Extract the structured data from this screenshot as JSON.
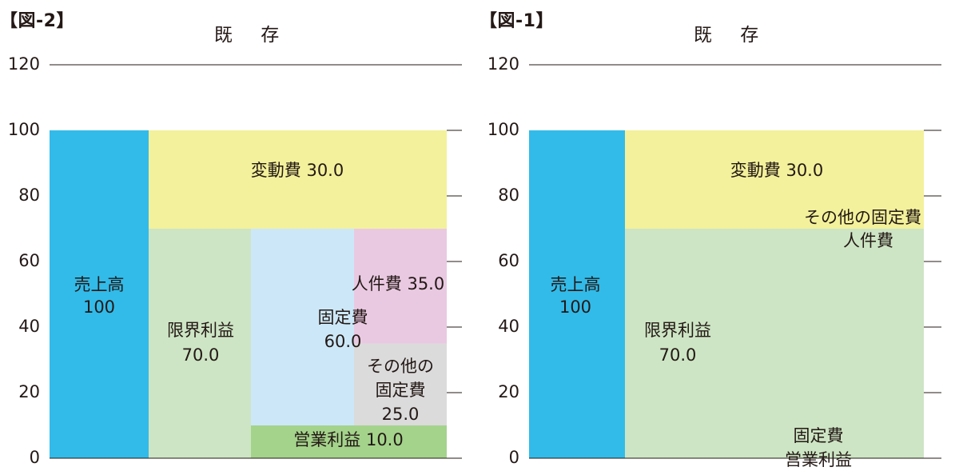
{
  "chart_data": [
    {
      "type": "bar",
      "figure_label": "【図-2】",
      "title": "既 存",
      "y_ticks": [
        "120",
        "100",
        "80",
        "60",
        "40",
        "20",
        "0"
      ],
      "ylim": [
        0,
        120
      ],
      "grid": false,
      "colors": {
        "sales": "#32bbe9",
        "variable": "#f3f19b",
        "marginal": "#cde5c4",
        "fixed": "#cce8f8",
        "personnel": "#e9c9e1",
        "other_fixed": "#dbdbdb",
        "operating_profit": "#a4d38c"
      },
      "segments": {
        "sales": {
          "label": "売上高",
          "value_text": "100",
          "bottom": 0,
          "top": 100
        },
        "variable": {
          "label": "変動費 30.0",
          "bottom": 70,
          "top": 100
        },
        "marginal": {
          "label": "限界利益",
          "value_text": "70.0",
          "bottom": 0,
          "top": 70
        },
        "fixed": {
          "label": "固定費",
          "value_text": "60.0",
          "bottom": 10,
          "top": 70
        },
        "personnel": {
          "label": "人件費 35.0",
          "bottom": 35,
          "top": 70
        },
        "other_fixed": {
          "label1": "その他の",
          "label2": "固定費",
          "value_text": "25.0",
          "bottom": 10,
          "top": 35
        },
        "operating_profit": {
          "label": "営業利益 10.0",
          "bottom": 0,
          "top": 10
        }
      }
    },
    {
      "type": "bar",
      "figure_label": "【図-1】",
      "title": "既 存",
      "y_ticks": [
        "120",
        "100",
        "80",
        "60",
        "40",
        "20",
        "0"
      ],
      "ylim": [
        0,
        120
      ],
      "grid": false,
      "colors": {
        "sales": "#32bbe9",
        "variable": "#f3f19b",
        "marginal": "#cde5c4"
      },
      "segments": {
        "sales": {
          "label": "売上高",
          "value_text": "100",
          "bottom": 0,
          "top": 100
        },
        "variable": {
          "label": "変動費 30.0",
          "bottom": 70,
          "top": 100
        },
        "marginal": {
          "label": "限界利益",
          "value_text": "70.0",
          "bottom": 0,
          "top": 70
        }
      },
      "annotations": {
        "other_fixed": "その他の固定費",
        "personnel": "人件費",
        "fixed": "固定費",
        "operating_profit": "営業利益"
      }
    }
  ]
}
